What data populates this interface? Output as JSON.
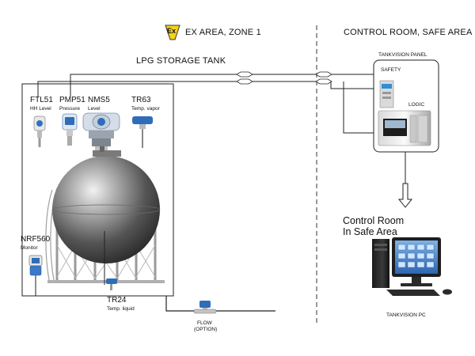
{
  "header": {
    "ex_symbol": "Ex",
    "ex_area": "EX AREA, ZONE 1",
    "control_room": "CONTROL ROOM, SAFE AREA"
  },
  "tank": {
    "title": "LPG STORAGE TANK"
  },
  "instruments": [
    {
      "tag": "FTL51",
      "desc": "HH Level"
    },
    {
      "tag": "PMP51",
      "desc": "Pressure"
    },
    {
      "tag": "NMS5",
      "desc": "Level"
    },
    {
      "tag": "TR63",
      "desc": "Temp. vapor"
    }
  ],
  "monitor": {
    "tag": "NRF560",
    "desc": "Monitor"
  },
  "liquid_temp": {
    "tag": "TR24",
    "desc": "Temp. liquid"
  },
  "flow": {
    "line1": "FLOW",
    "line2": "(OPTION)"
  },
  "panel": {
    "title": "TANKVISION PANEL",
    "safety": "SAFETY",
    "logic": "LOGIC"
  },
  "control_room_pc": {
    "line1": "Control Room",
    "line2": "In Safe Area",
    "caption": "TANKVISION PC"
  },
  "colors": {
    "line": "#222222",
    "ex_badge": "#f3d21a",
    "tank_dark": "#3c3c3c",
    "tank_light": "#e8e8e8",
    "instrument_blue": "#2f6db8",
    "screen_blue": "#4a90d9"
  }
}
